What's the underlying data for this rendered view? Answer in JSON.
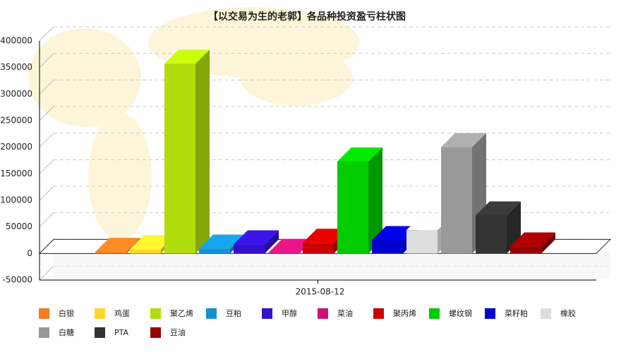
{
  "chart_data": {
    "type": "bar3d",
    "title": "【以交易为生的老郭】各品种投资盈亏柱状图",
    "categories": [
      "2015-08-12"
    ],
    "ylim": [
      -50000,
      400000
    ],
    "yticks": [
      -50000,
      0,
      50000,
      100000,
      150000,
      200000,
      250000,
      300000,
      350000,
      400000
    ],
    "grid": true,
    "series": [
      {
        "name": "白银",
        "color": "#f57a20",
        "values": [
          3000
        ]
      },
      {
        "name": "鸡蛋",
        "color": "#fdd82b",
        "values": [
          8000
        ]
      },
      {
        "name": "聚乙烯",
        "color": "#b0dd0b",
        "values": [
          357000
        ]
      },
      {
        "name": "豆粕",
        "color": "#1490d1",
        "values": [
          9000
        ]
      },
      {
        "name": "甲醇",
        "color": "#3311cc",
        "values": [
          17000
        ]
      },
      {
        "name": "菜油",
        "color": "#cc1177",
        "values": [
          1000
        ]
      },
      {
        "name": "聚丙烯",
        "color": "#cc0000",
        "values": [
          20000
        ]
      },
      {
        "name": "螺纹钢",
        "color": "#00cc00",
        "values": [
          173000
        ]
      },
      {
        "name": "菜籽粕",
        "color": "#0000cc",
        "values": [
          25000
        ]
      },
      {
        "name": "橡胶",
        "color": "#dddddd",
        "values": [
          44000
        ]
      },
      {
        "name": "白糖",
        "color": "#999999",
        "values": [
          200000
        ]
      },
      {
        "name": "PTA",
        "color": "#333333",
        "values": [
          71500
        ]
      },
      {
        "name": "豆油",
        "color": "#990000",
        "values": [
          13000
        ]
      }
    ]
  }
}
